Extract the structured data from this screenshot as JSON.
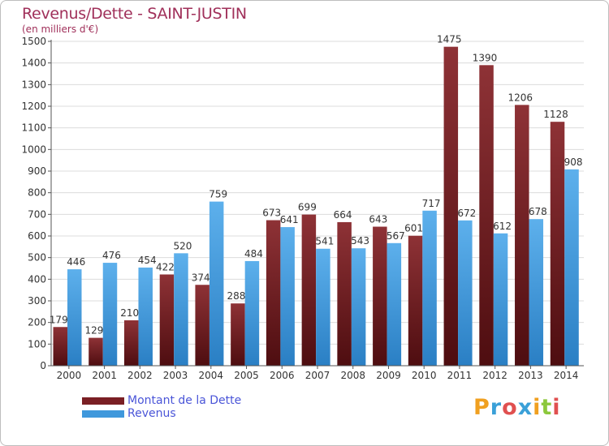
{
  "chart_data": {
    "type": "bar",
    "title": "Revenus/Dette - SAINT-JUSTIN",
    "subtitle": "(en milliers d'€)",
    "categories": [
      "2000",
      "2001",
      "2002",
      "2003",
      "2004",
      "2005",
      "2006",
      "2007",
      "2008",
      "2009",
      "2010",
      "2011",
      "2012",
      "2013",
      "2014"
    ],
    "series": [
      {
        "name": "Montant de la Dette",
        "color": "#7a1f24",
        "values": [
          179,
          129,
          210,
          422,
          374,
          288,
          673,
          699,
          664,
          643,
          601,
          1475,
          1390,
          1206,
          1128
        ]
      },
      {
        "name": "Revenus",
        "color": "#3f98dc",
        "values": [
          446,
          476,
          454,
          520,
          759,
          484,
          641,
          541,
          543,
          567,
          717,
          672,
          612,
          678,
          908
        ]
      }
    ],
    "ylim": [
      0,
      1500
    ],
    "yticks": [
      0,
      100,
      200,
      300,
      400,
      500,
      600,
      700,
      800,
      900,
      1000,
      1100,
      1200,
      1300,
      1400,
      1500
    ],
    "grid": true,
    "legend": "bottom-left"
  },
  "brand": {
    "letters": [
      "P",
      "r",
      "o",
      "x",
      "i",
      "t",
      "i"
    ],
    "colors": [
      "#f0a020",
      "#3aa0d8",
      "#e05050",
      "#3aa0d8",
      "#f0a020",
      "#8cc83c",
      "#e05050"
    ]
  }
}
